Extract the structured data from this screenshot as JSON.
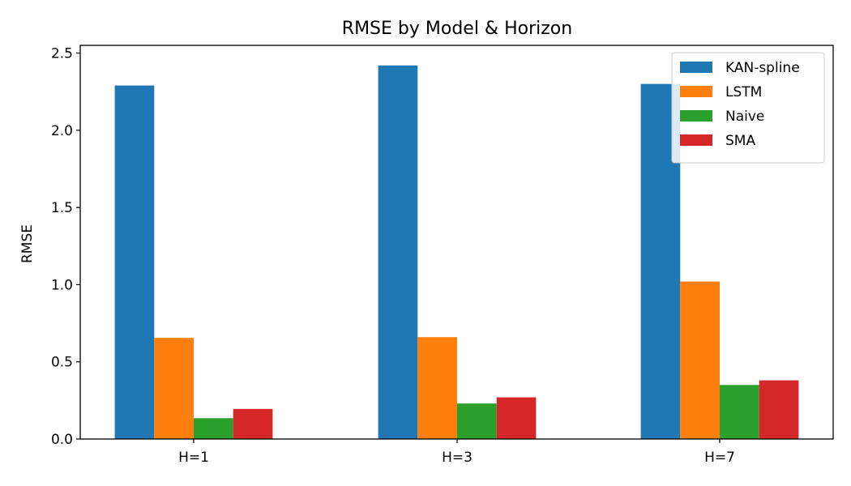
{
  "chart_data": {
    "type": "bar",
    "title": "RMSE by Model & Horizon",
    "xlabel": "",
    "ylabel": "RMSE",
    "categories": [
      "H=1",
      "H=3",
      "H=7"
    ],
    "ylim": [
      0,
      2.55
    ],
    "yticks": [
      0.0,
      0.5,
      1.0,
      1.5,
      2.0,
      2.5
    ],
    "ytick_labels": [
      "0.0",
      "0.5",
      "1.0",
      "1.5",
      "2.0",
      "2.5"
    ],
    "grid": false,
    "legend_position": "top-right",
    "series": [
      {
        "name": "KAN-spline",
        "color": "#1f77b4",
        "values": [
          2.29,
          2.42,
          2.3
        ]
      },
      {
        "name": "LSTM",
        "color": "#ff7f0e",
        "values": [
          0.655,
          0.66,
          1.02
        ]
      },
      {
        "name": "Naive",
        "color": "#2ca02c",
        "values": [
          0.135,
          0.23,
          0.35
        ]
      },
      {
        "name": "SMA",
        "color": "#d62728",
        "values": [
          0.195,
          0.27,
          0.38
        ]
      }
    ]
  }
}
